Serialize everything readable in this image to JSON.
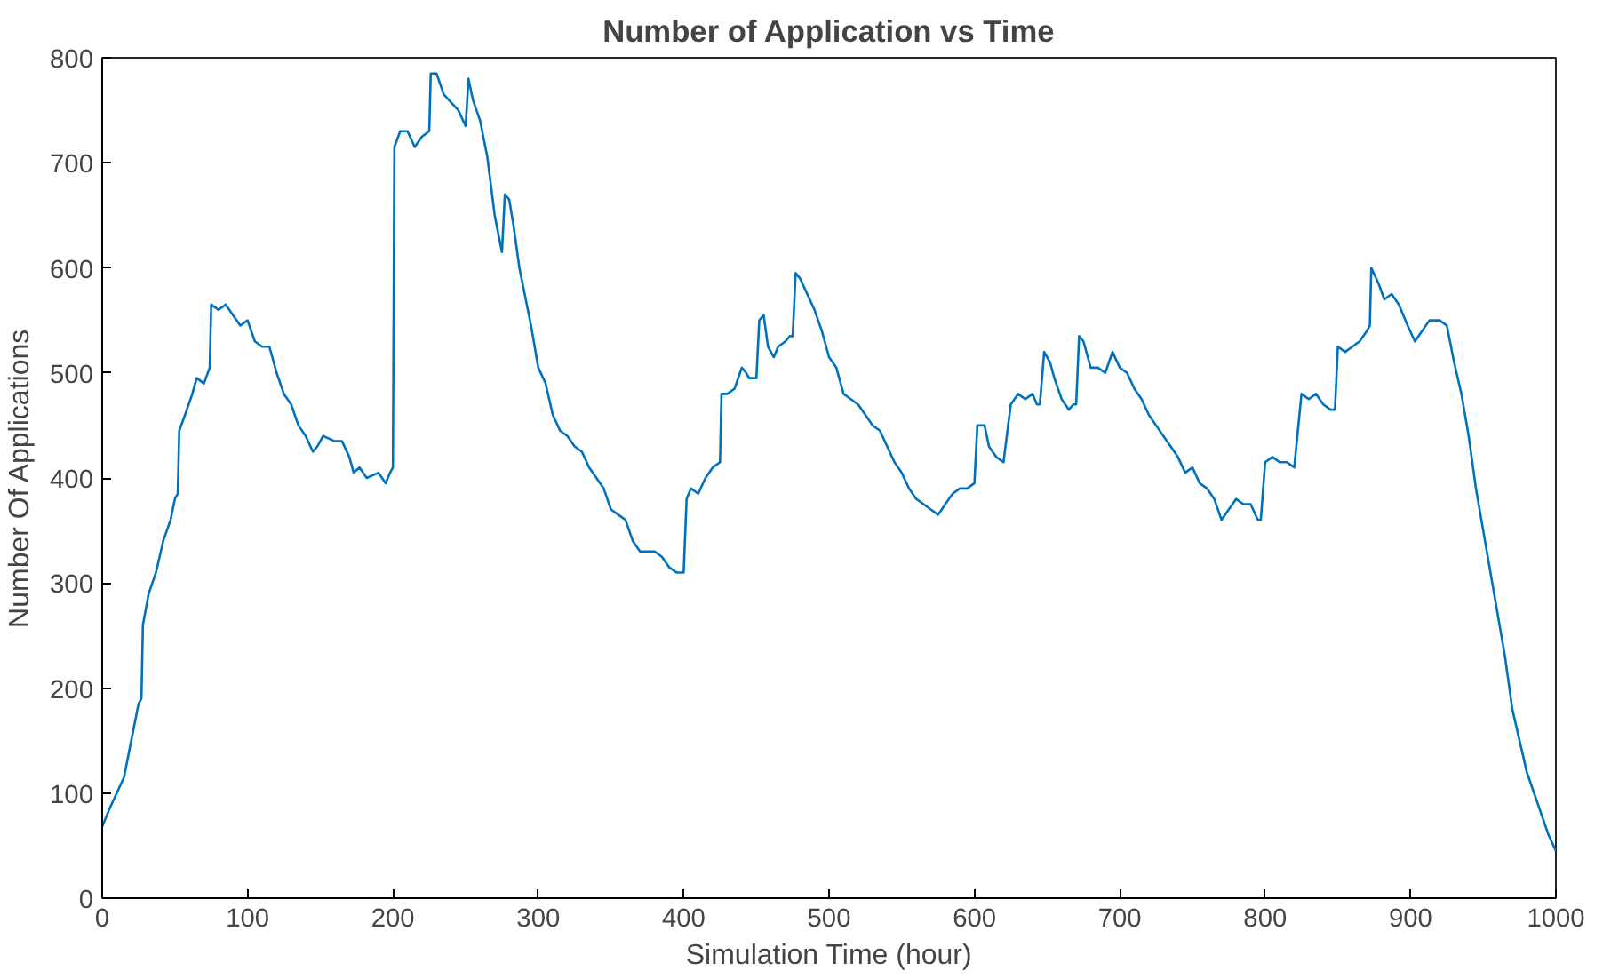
{
  "chart_data": {
    "type": "line",
    "title": "Number of Application vs Time",
    "xlabel": "Simulation Time (hour)",
    "ylabel": "Number Of Applications",
    "xlim": [
      0,
      1000
    ],
    "ylim": [
      0,
      800
    ],
    "xticks": [
      0,
      100,
      200,
      300,
      400,
      500,
      600,
      700,
      800,
      900,
      1000
    ],
    "yticks": [
      0,
      100,
      200,
      300,
      400,
      500,
      600,
      700,
      800
    ],
    "grid": false,
    "series": [
      {
        "color": "#0072bd",
        "x": [
          0,
          5,
          10,
          15,
          20,
          25,
          27,
          28,
          32,
          37,
          42,
          47,
          50,
          52,
          53,
          57,
          62,
          65,
          70,
          74,
          75,
          80,
          85,
          90,
          95,
          100,
          105,
          110,
          115,
          120,
          125,
          130,
          135,
          140,
          145,
          148,
          152,
          160,
          165,
          170,
          173,
          177,
          182,
          190,
          195,
          198,
          200,
          201,
          205,
          210,
          215,
          220,
          225,
          226,
          230,
          235,
          245,
          250,
          252,
          255,
          260,
          265,
          270,
          275,
          277,
          280,
          283,
          287,
          295,
          300,
          305,
          310,
          315,
          320,
          325,
          330,
          335,
          340,
          345,
          350,
          355,
          360,
          365,
          370,
          375,
          380,
          385,
          390,
          395,
          400,
          402,
          405,
          410,
          415,
          420,
          425,
          426,
          430,
          435,
          440,
          443,
          445,
          450,
          452,
          455,
          458,
          462,
          465,
          470,
          473,
          475,
          477,
          480,
          485,
          490,
          495,
          500,
          505,
          510,
          515,
          520,
          525,
          530,
          535,
          540,
          545,
          550,
          555,
          560,
          565,
          570,
          575,
          580,
          585,
          590,
          595,
          600,
          602,
          607,
          610,
          615,
          620,
          625,
          630,
          635,
          640,
          643,
          645,
          648,
          652,
          655,
          660,
          665,
          668,
          670,
          672,
          675,
          680,
          685,
          690,
          695,
          700,
          705,
          710,
          715,
          720,
          725,
          730,
          735,
          740,
          745,
          750,
          755,
          760,
          765,
          770,
          775,
          780,
          785,
          790,
          795,
          797,
          800,
          805,
          810,
          815,
          820,
          825,
          830,
          835,
          840,
          845,
          848,
          850,
          855,
          860,
          865,
          870,
          872,
          873,
          878,
          882,
          887,
          892,
          895,
          898,
          903,
          908,
          913,
          920,
          925,
          930,
          935,
          940,
          945,
          950,
          955,
          960,
          965,
          970,
          975,
          980,
          985,
          990,
          995,
          1000
        ],
        "values": [
          68,
          85,
          100,
          115,
          150,
          185,
          190,
          260,
          290,
          310,
          340,
          360,
          380,
          385,
          445,
          460,
          480,
          495,
          490,
          505,
          565,
          560,
          565,
          555,
          545,
          550,
          530,
          525,
          525,
          500,
          480,
          470,
          450,
          440,
          425,
          430,
          440,
          435,
          435,
          420,
          405,
          410,
          400,
          405,
          395,
          405,
          410,
          715,
          730,
          730,
          715,
          725,
          730,
          785,
          785,
          765,
          750,
          735,
          780,
          760,
          740,
          705,
          650,
          615,
          670,
          665,
          640,
          600,
          545,
          505,
          490,
          460,
          445,
          440,
          430,
          425,
          410,
          400,
          390,
          370,
          365,
          360,
          340,
          330,
          330,
          330,
          325,
          315,
          310,
          310,
          380,
          390,
          385,
          400,
          410,
          415,
          480,
          480,
          485,
          505,
          500,
          495,
          495,
          550,
          555,
          525,
          515,
          525,
          530,
          535,
          535,
          595,
          590,
          575,
          560,
          540,
          515,
          505,
          480,
          475,
          470,
          460,
          450,
          445,
          430,
          415,
          405,
          390,
          380,
          375,
          370,
          365,
          375,
          385,
          390,
          390,
          395,
          450,
          450,
          430,
          420,
          415,
          470,
          480,
          475,
          480,
          470,
          470,
          520,
          510,
          495,
          475,
          465,
          470,
          470,
          535,
          530,
          505,
          505,
          500,
          520,
          505,
          500,
          485,
          475,
          460,
          450,
          440,
          430,
          420,
          405,
          410,
          395,
          390,
          380,
          360,
          370,
          380,
          375,
          375,
          360,
          360,
          415,
          420,
          415,
          415,
          410,
          480,
          475,
          480,
          470,
          465,
          465,
          525,
          520,
          525,
          530,
          540,
          545,
          600,
          585,
          570,
          575,
          565,
          555,
          545,
          530,
          540,
          550,
          550,
          545,
          510,
          480,
          440,
          390,
          350,
          310,
          270,
          230,
          180,
          150,
          120,
          100,
          80,
          60,
          45
        ]
      }
    ]
  }
}
